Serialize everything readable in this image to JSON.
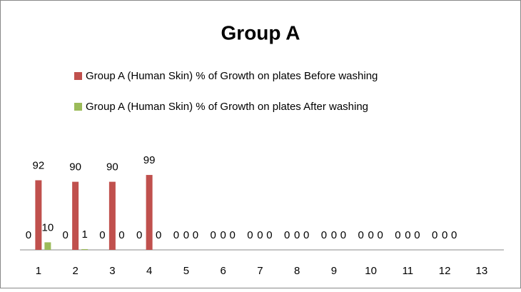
{
  "chart_data": {
    "type": "bar",
    "title": "Group A",
    "categories": [
      "1",
      "2",
      "3",
      "4",
      "5",
      "6",
      "7",
      "8",
      "9",
      "10",
      "11",
      "12",
      "13"
    ],
    "series": [
      {
        "values": [
          0,
          0,
          0,
          0,
          0,
          0,
          0,
          0,
          0,
          0,
          0,
          0,
          null
        ]
      },
      {
        "name": "Group A (Human Skin) % of Growth on plates Before washing",
        "color": "#c0504d",
        "values": [
          92,
          90,
          90,
          99,
          0,
          0,
          0,
          0,
          0,
          0,
          0,
          0,
          null
        ]
      },
      {
        "name": "Group A (Human Skin) % of Growth on plates After washing",
        "color": "#9bbb59",
        "values": [
          10,
          1,
          0,
          0,
          0,
          0,
          0,
          0,
          0,
          0,
          0,
          0,
          null
        ]
      }
    ],
    "ylim": [
      0,
      100
    ]
  }
}
